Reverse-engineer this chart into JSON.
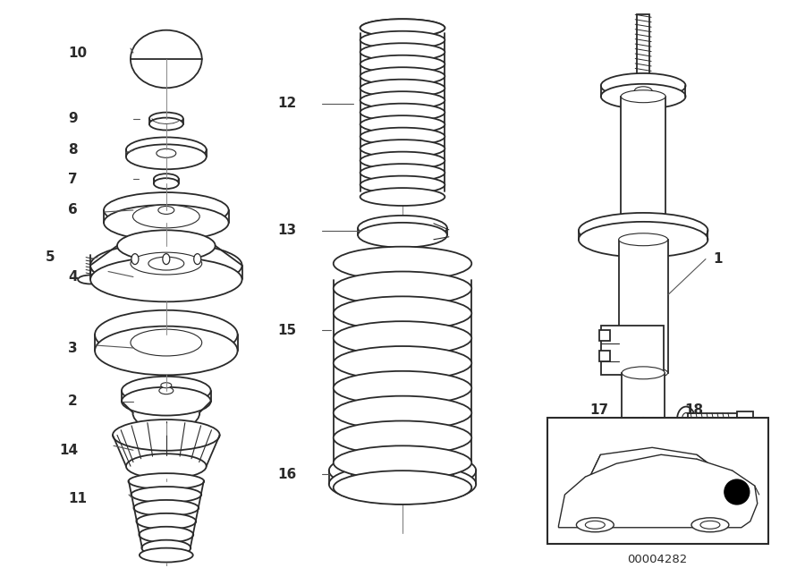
{
  "bg_color": "#ffffff",
  "line_color": "#2a2a2a",
  "diagram_number": "00004282",
  "fig_w": 9.0,
  "fig_h": 6.35,
  "dpi": 100
}
